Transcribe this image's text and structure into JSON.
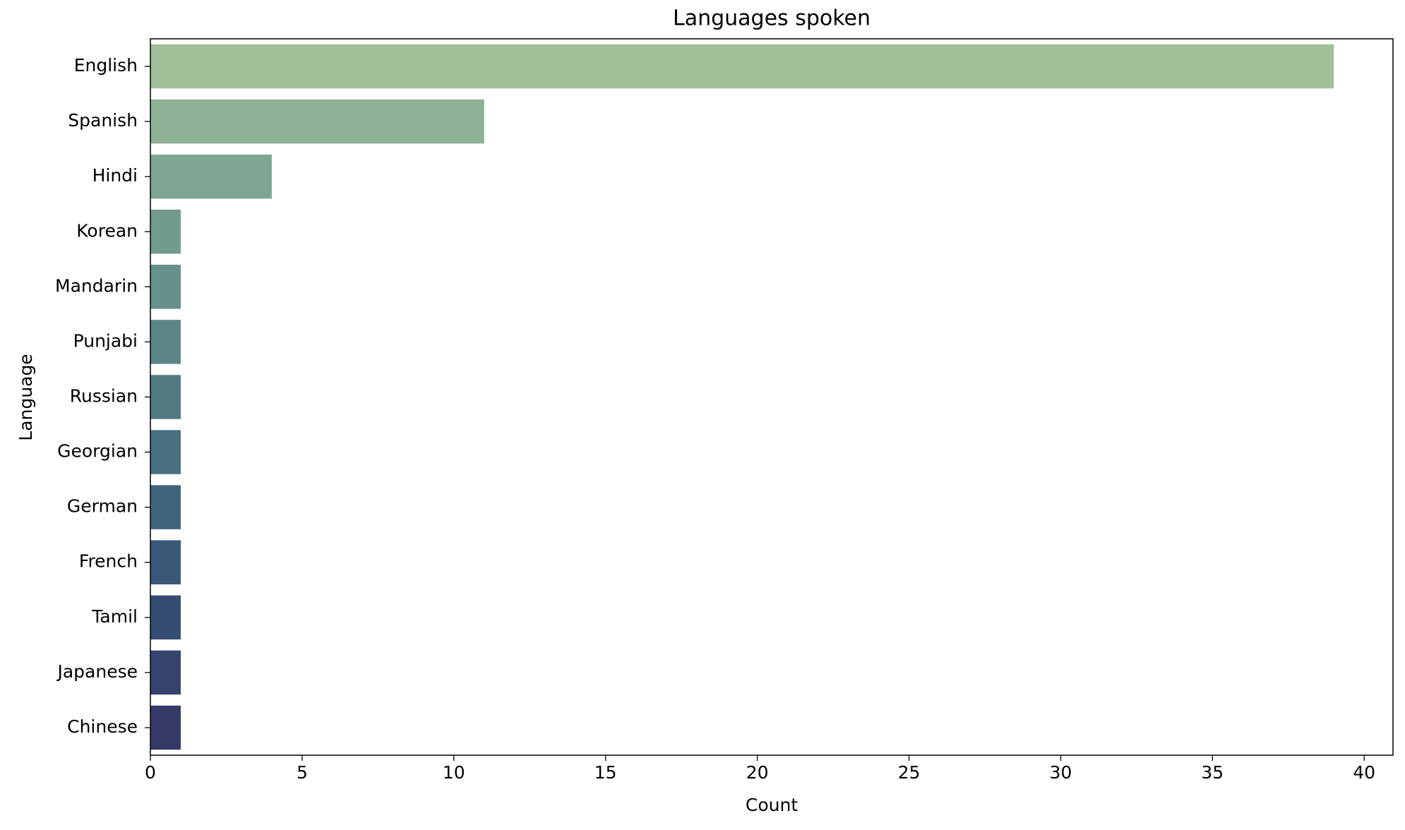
{
  "chart_data": {
    "type": "barh",
    "title": "Languages spoken",
    "x_label": "Count",
    "y_label": "Language",
    "categories": [
      "English",
      "Spanish",
      "Hindi",
      "Korean",
      "Mandarin",
      "Punjabi",
      "Russian",
      "Georgian",
      "German",
      "French",
      "Tamil",
      "Japanese",
      "Chinese"
    ],
    "values": [
      39,
      11,
      4,
      1,
      1,
      1,
      1,
      1,
      1,
      1,
      1,
      1,
      1
    ],
    "colors": [
      "#a0c09a",
      "#8fb296",
      "#7fa692",
      "#729b8e",
      "#66908a",
      "#5c8586",
      "#517a83",
      "#476f80",
      "#40647c",
      "#3a5878",
      "#364d73",
      "#35436e",
      "#353968"
    ],
    "xlim": [
      0,
      40.95
    ],
    "xticks": [
      0,
      5,
      10,
      15,
      20,
      25,
      30,
      35,
      40
    ]
  }
}
